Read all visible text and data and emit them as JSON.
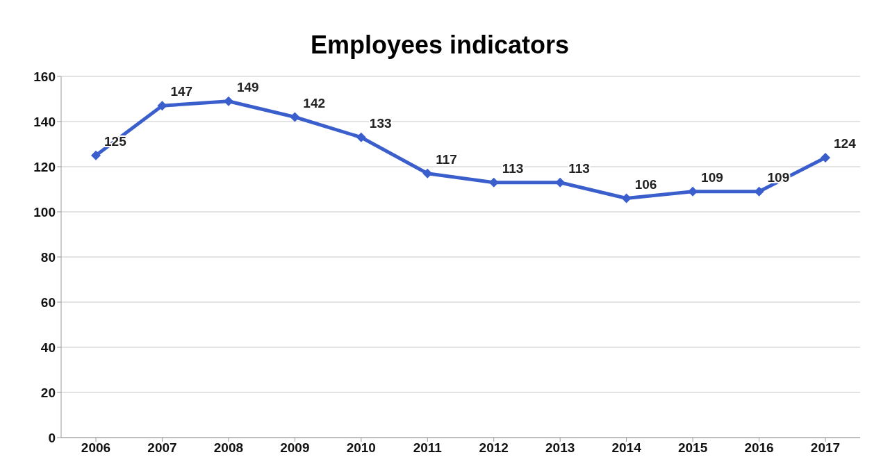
{
  "chart_data": {
    "type": "line",
    "title": "Employees indicators",
    "categories": [
      "2006",
      "2007",
      "2008",
      "2009",
      "2010",
      "2011",
      "2012",
      "2013",
      "2014",
      "2015",
      "2016",
      "2017"
    ],
    "series": [
      {
        "color": "#3a5fcd",
        "values": [
          125,
          147,
          149,
          142,
          133,
          117,
          113,
          113,
          106,
          109,
          109,
          124
        ]
      }
    ],
    "ylim": [
      0,
      160
    ],
    "yticks": [
      0,
      20,
      40,
      60,
      80,
      100,
      120,
      140,
      160
    ],
    "grid": "y",
    "legend": false,
    "marker": "diamond",
    "line_style": "solid",
    "data_labels": true
  }
}
